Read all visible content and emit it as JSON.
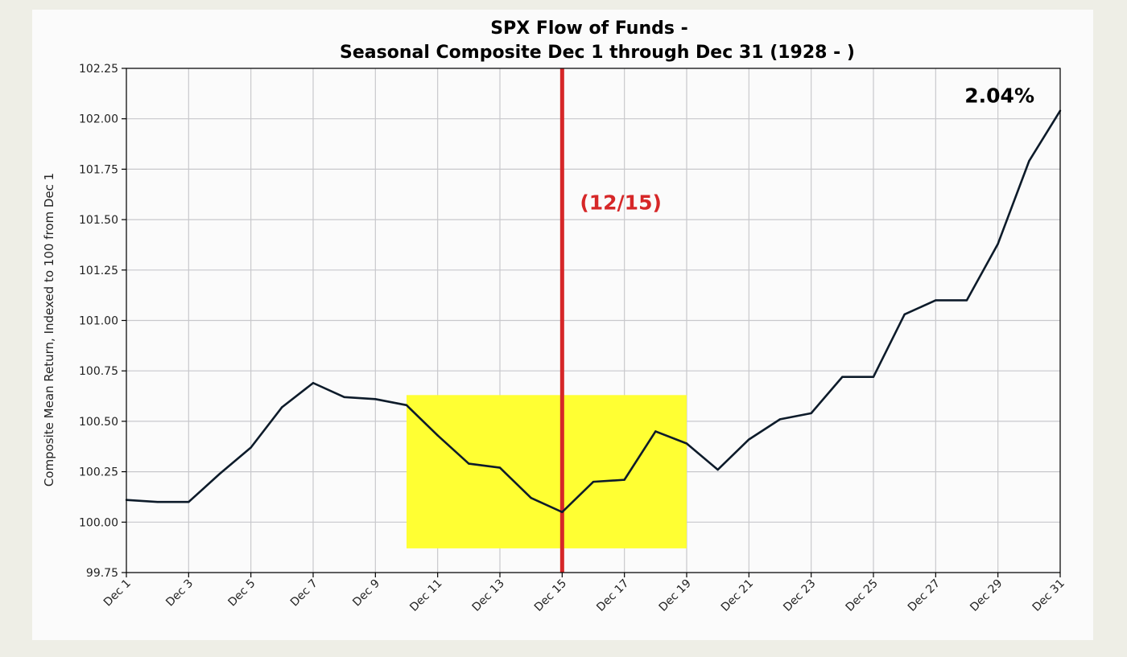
{
  "chart_data": {
    "type": "line",
    "title": "SPX Flow of Funds -",
    "subtitle": "Seasonal Composite Dec 1 through Dec 31 (1928 - )",
    "ylabel": "Composite Mean Return, Indexed to 100 from Dec 1",
    "xlabel": "",
    "ylim": [
      99.75,
      102.25
    ],
    "yticks": [
      "99.75",
      "100.00",
      "100.25",
      "100.50",
      "100.75",
      "101.00",
      "101.25",
      "101.50",
      "101.75",
      "102.00",
      "102.25"
    ],
    "xticks": [
      "Dec 1",
      "Dec 3",
      "Dec 5",
      "Dec 7",
      "Dec 9",
      "Dec 11",
      "Dec 13",
      "Dec 15",
      "Dec 17",
      "Dec 19",
      "Dec 21",
      "Dec 23",
      "Dec 25",
      "Dec 27",
      "Dec 29",
      "Dec 31"
    ],
    "grid": true,
    "series": [
      {
        "color": "#0d1b2a",
        "x": [
          1,
          2,
          3,
          4,
          5,
          6,
          7,
          8,
          9,
          10,
          11,
          12,
          13,
          14,
          15,
          16,
          17,
          18,
          19,
          20,
          21,
          22,
          23,
          24,
          25,
          26,
          27,
          28,
          29,
          30,
          31
        ],
        "values": [
          100.11,
          100.1,
          100.1,
          100.24,
          100.37,
          100.57,
          100.69,
          100.62,
          100.61,
          100.58,
          100.43,
          100.29,
          100.27,
          100.12,
          100.05,
          100.2,
          100.21,
          100.45,
          100.39,
          100.26,
          100.41,
          100.51,
          100.54,
          100.72,
          100.72,
          101.03,
          101.1,
          101.1,
          101.38,
          101.79,
          102.04
        ]
      }
    ],
    "highlight_box": {
      "x_start": 10,
      "x_end": 19,
      "y_start": 99.87,
      "y_end": 100.63,
      "color": "#ffff33"
    },
    "vline": {
      "x": 15,
      "label": "(12/15)",
      "color": "#d62728"
    },
    "end_annotation": "2.04%"
  }
}
